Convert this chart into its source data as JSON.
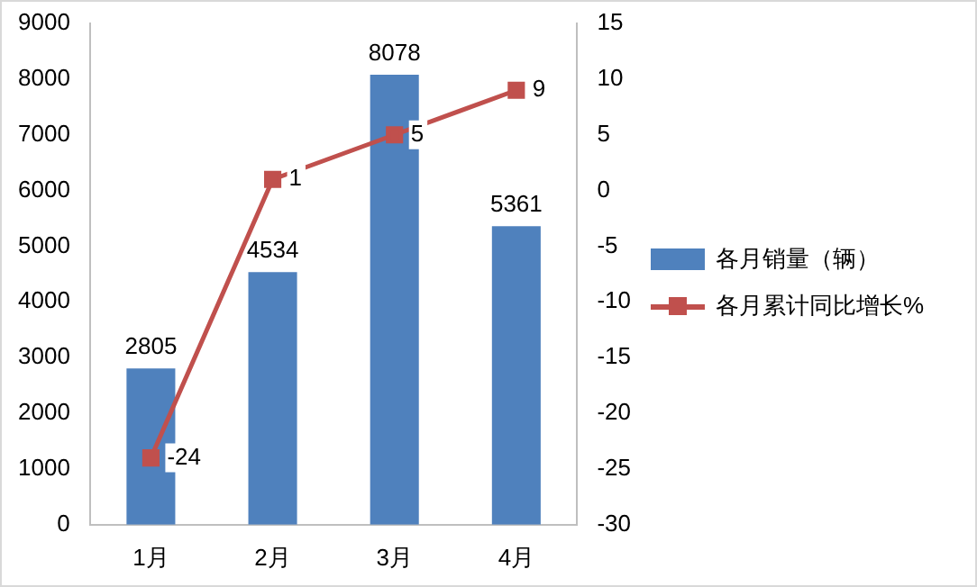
{
  "chart_data": {
    "type": "bar",
    "categories": [
      "1月",
      "2月",
      "3月",
      "4月"
    ],
    "series": [
      {
        "name": "各月销量（辆）",
        "color": "#4f81bd",
        "values": [
          2805,
          4534,
          8078,
          5361
        ]
      },
      {
        "name": "各月累计同比增长%",
        "type": "line",
        "axis": "y2",
        "color": "#c0504d",
        "values": [
          -24,
          1,
          5,
          9
        ]
      }
    ],
    "ylim": [
      0,
      9000
    ],
    "yticks": [
      0,
      1000,
      2000,
      3000,
      4000,
      5000,
      6000,
      7000,
      8000,
      9000
    ],
    "y2lim": [
      -30,
      15
    ],
    "y2ticks": [
      -30,
      -25,
      -20,
      -15,
      -10,
      -5,
      0,
      5,
      10,
      15
    ],
    "data_labels": true,
    "legend": "right",
    "grid": false,
    "marker": "square",
    "line_style": "solid"
  }
}
